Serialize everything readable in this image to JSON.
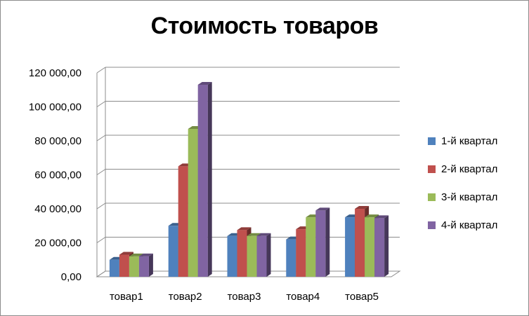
{
  "chart_data": {
    "type": "bar",
    "title": "Стоимость товаров",
    "xlabel": "",
    "ylabel": "",
    "ylim": [
      0,
      120000
    ],
    "y_ticks": [
      0,
      20000,
      40000,
      60000,
      80000,
      100000,
      120000
    ],
    "y_tick_labels": [
      "0,00",
      "20 000,00",
      "40 000,00",
      "60 000,00",
      "80 000,00",
      "100 000,00",
      "120 000,00"
    ],
    "categories": [
      "товар1",
      "товар2",
      "товар3",
      "товар4",
      "товар5"
    ],
    "series": [
      {
        "name": "1-й квартал",
        "color": "#4f81bd",
        "values": [
          10000,
          30000,
          24000,
          22000,
          35000
        ]
      },
      {
        "name": "2-й квартал",
        "color": "#c0504d",
        "values": [
          13000,
          65000,
          27500,
          28000,
          40000
        ]
      },
      {
        "name": "3-й квартал",
        "color": "#9bbb59",
        "values": [
          12000,
          87000,
          24000,
          35000,
          35000
        ]
      },
      {
        "name": "4-й квартал",
        "color": "#8064a2",
        "values": [
          12000,
          113000,
          24000,
          39000,
          34500
        ]
      }
    ],
    "grid": true,
    "legend_position": "right",
    "style": "3d-clustered-column"
  }
}
